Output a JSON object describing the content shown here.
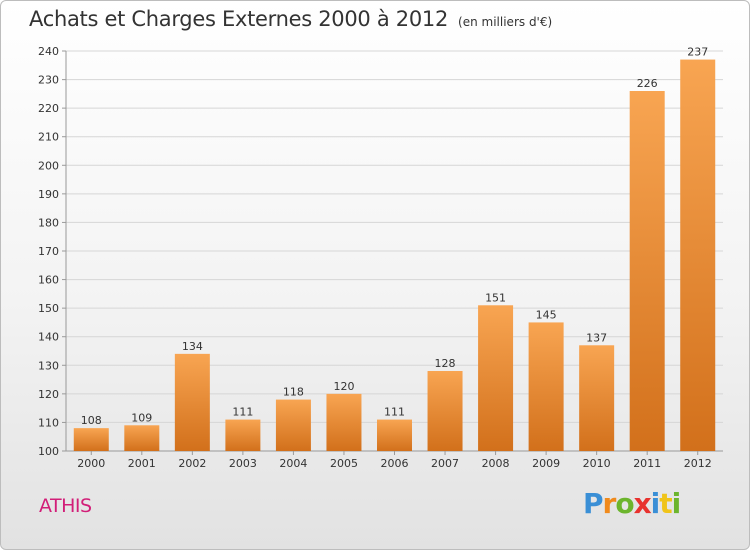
{
  "chart_title": "Achats et Charges Externes 2000 à 2012",
  "chart_units": "(en milliers d'€)",
  "commune": "ATHIS",
  "logo": {
    "text": "Proxiti",
    "letters": [
      {
        "char": "P",
        "color": "#3a8fd6"
      },
      {
        "char": "r",
        "color": "#f08a1c"
      },
      {
        "char": "o",
        "color": "#6cb52d"
      },
      {
        "char": "x",
        "color": "#e8322e"
      },
      {
        "char": "i",
        "color": "#3a8fd6"
      },
      {
        "char": "t",
        "color": "#f0c419"
      },
      {
        "char": "i",
        "color": "#6cb52d"
      }
    ]
  },
  "chart_data": {
    "type": "bar",
    "title": "Achats et Charges Externes 2000 à 2012",
    "subtitle": "(en milliers d'€)",
    "xlabel": "",
    "ylabel": "",
    "categories": [
      "2000",
      "2001",
      "2002",
      "2003",
      "2004",
      "2005",
      "2006",
      "2007",
      "2008",
      "2009",
      "2010",
      "2011",
      "2012"
    ],
    "values": [
      108,
      109,
      134,
      111,
      118,
      120,
      111,
      128,
      151,
      145,
      137,
      226,
      237
    ],
    "ylim": [
      100,
      240
    ],
    "yticks": [
      100,
      110,
      120,
      130,
      140,
      150,
      160,
      170,
      180,
      190,
      200,
      210,
      220,
      230,
      240
    ],
    "grid": true,
    "legend": "none",
    "colors": {
      "bar_top": "#f8a552",
      "bar_bottom": "#d2701b",
      "grid": "#d6d6d6",
      "axis": "#999999",
      "text": "#333333"
    }
  }
}
